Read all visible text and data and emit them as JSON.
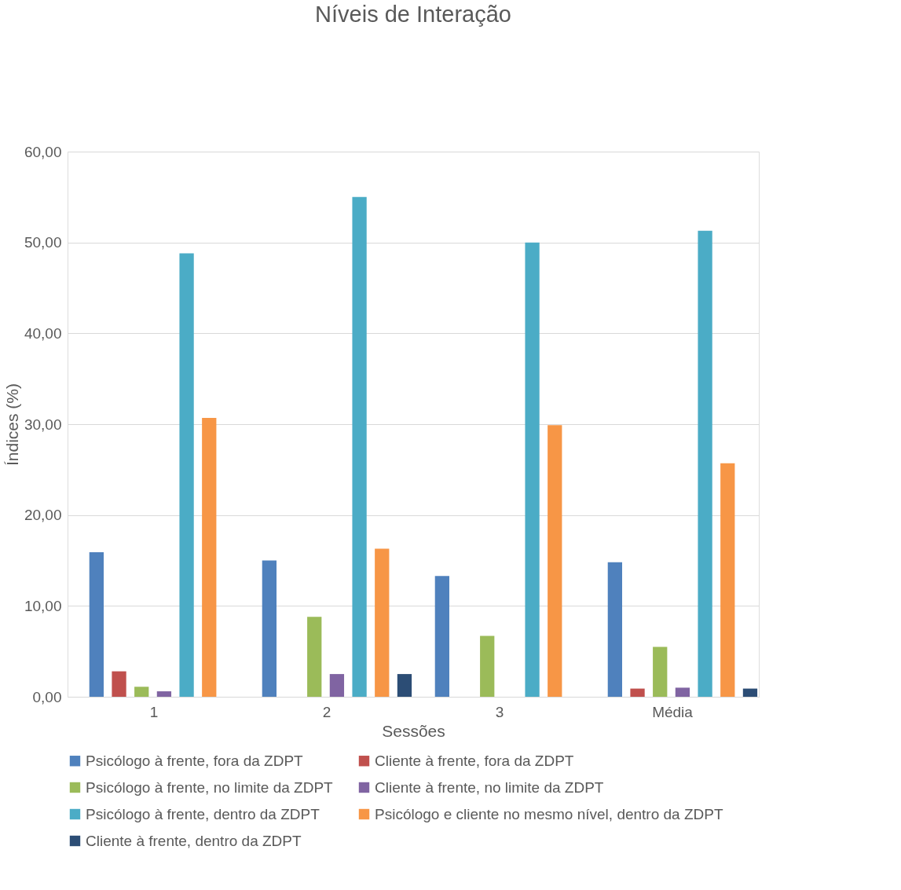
{
  "chart_data": {
    "type": "bar",
    "title": "Níveis de Interação",
    "xlabel": "Sessões",
    "ylabel": "Índices (%)",
    "categories": [
      "1",
      "2",
      "3",
      "Média"
    ],
    "series": [
      {
        "name": "Psicólogo à frente, fora da ZDPT",
        "color": "#4f81bd",
        "values": [
          15.9,
          15.0,
          13.3,
          14.8
        ]
      },
      {
        "name": "Cliente à frente, fora da ZDPT",
        "color": "#c0504d",
        "values": [
          2.8,
          0,
          0,
          0.9
        ]
      },
      {
        "name": "Psicólogo à frente, no limite da ZDPT",
        "color": "#9bbb59",
        "values": [
          1.1,
          8.8,
          6.7,
          5.5
        ]
      },
      {
        "name": "Cliente à frente, no limite da ZDPT",
        "color": "#8064a2",
        "values": [
          0.6,
          2.5,
          0,
          1.0
        ]
      },
      {
        "name": "Psicólogo à frente, dentro da ZDPT",
        "color": "#4bacc6",
        "values": [
          48.8,
          55.0,
          50.0,
          51.3
        ]
      },
      {
        "name": "Psicólogo e cliente no mesmo nível, dentro da ZDPT",
        "color": "#f79646",
        "values": [
          30.7,
          16.3,
          29.9,
          25.7
        ]
      },
      {
        "name": "Cliente à frente, dentro da ZDPT",
        "color": "#2c4d75",
        "values": [
          0,
          2.5,
          0,
          0.9
        ]
      }
    ],
    "ylim": [
      0,
      60
    ],
    "yticks": [
      {
        "value": 0,
        "label": "0,00"
      },
      {
        "value": 10,
        "label": "10,00"
      },
      {
        "value": 20,
        "label": "20,00"
      },
      {
        "value": 30,
        "label": "30,00"
      },
      {
        "value": 40,
        "label": "40,00"
      },
      {
        "value": 50,
        "label": "50,00"
      },
      {
        "value": 60,
        "label": "60,00"
      }
    ],
    "grid": "y",
    "legend": "bottom"
  }
}
